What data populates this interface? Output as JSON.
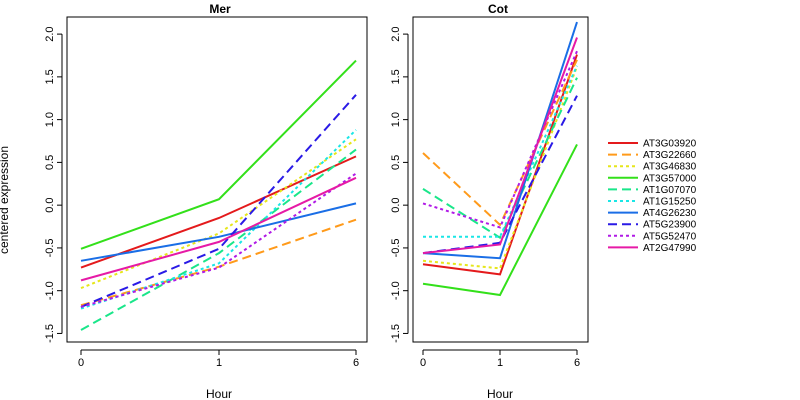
{
  "chart_data": {
    "type": "line",
    "ylabel": "centered expression",
    "xlabel": "Hour",
    "x": [
      0,
      1,
      6
    ],
    "x_tick_labels": [
      "0",
      "1",
      "6"
    ],
    "y_ticks": [
      "-1.5",
      "-1.0",
      "-0.5",
      "0.0",
      "0.5",
      "1.0",
      "1.5",
      "2.0"
    ],
    "ylim": [
      -1.6,
      2.2
    ],
    "grid": false,
    "legend_position": "right",
    "legend": [
      {
        "name": "AT3G03920",
        "color": "#e41a1c",
        "dash": "solid"
      },
      {
        "name": "AT3G22660",
        "color": "#ff9a1a",
        "dash": "longdash"
      },
      {
        "name": "AT3G46830",
        "color": "#e6e61a",
        "dash": "dotted"
      },
      {
        "name": "AT3G57000",
        "color": "#33e01a",
        "dash": "solid"
      },
      {
        "name": "AT1G07070",
        "color": "#1ae68a",
        "dash": "longdash"
      },
      {
        "name": "AT1G15250",
        "color": "#1ae6e6",
        "dash": "dotted"
      },
      {
        "name": "AT4G26230",
        "color": "#1a6ee6",
        "dash": "solid"
      },
      {
        "name": "AT5G23900",
        "color": "#2a1ae6",
        "dash": "longdash"
      },
      {
        "name": "AT5G52470",
        "color": "#b01ae6",
        "dash": "dotted"
      },
      {
        "name": "AT2G47990",
        "color": "#e61aa6",
        "dash": "solid"
      }
    ],
    "panels": [
      {
        "title": "Mer",
        "series": [
          {
            "name": "AT3G03920",
            "values": [
              -0.73,
              -0.15,
              0.57
            ]
          },
          {
            "name": "AT3G22660",
            "values": [
              -1.17,
              -0.72,
              -0.17
            ]
          },
          {
            "name": "AT3G46830",
            "values": [
              -0.97,
              -0.33,
              0.77
            ]
          },
          {
            "name": "AT3G57000",
            "values": [
              -0.51,
              0.07,
              1.69
            ]
          },
          {
            "name": "AT1G07070",
            "values": [
              -1.46,
              -0.56,
              0.65
            ]
          },
          {
            "name": "AT1G15250",
            "values": [
              -1.21,
              -0.68,
              0.88
            ]
          },
          {
            "name": "AT4G26230",
            "values": [
              -0.65,
              -0.37,
              0.02
            ]
          },
          {
            "name": "AT5G23900",
            "values": [
              -1.19,
              -0.51,
              1.29
            ]
          },
          {
            "name": "AT5G52470",
            "values": [
              -1.19,
              -0.73,
              0.37
            ]
          },
          {
            "name": "AT2G47990",
            "values": [
              -0.88,
              -0.43,
              0.32
            ]
          }
        ]
      },
      {
        "title": "Cot",
        "series": [
          {
            "name": "AT3G03920",
            "values": [
              -0.69,
              -0.81,
              1.76
            ]
          },
          {
            "name": "AT3G22660",
            "values": [
              0.61,
              -0.23,
              1.7
            ]
          },
          {
            "name": "AT3G46830",
            "values": [
              -0.65,
              -0.74,
              1.62
            ]
          },
          {
            "name": "AT3G57000",
            "values": [
              -0.92,
              -1.05,
              0.71
            ]
          },
          {
            "name": "AT1G07070",
            "values": [
              0.19,
              -0.38,
              1.49
            ]
          },
          {
            "name": "AT1G15250",
            "values": [
              -0.37,
              -0.37,
              1.63
            ]
          },
          {
            "name": "AT4G26230",
            "values": [
              -0.56,
              -0.62,
              2.14
            ]
          },
          {
            "name": "AT5G23900",
            "values": [
              -0.56,
              -0.44,
              1.28
            ]
          },
          {
            "name": "AT5G52470",
            "values": [
              0.02,
              -0.26,
              1.8
            ]
          },
          {
            "name": "AT2G47990",
            "values": [
              -0.56,
              -0.46,
              1.96
            ]
          }
        ]
      }
    ]
  }
}
